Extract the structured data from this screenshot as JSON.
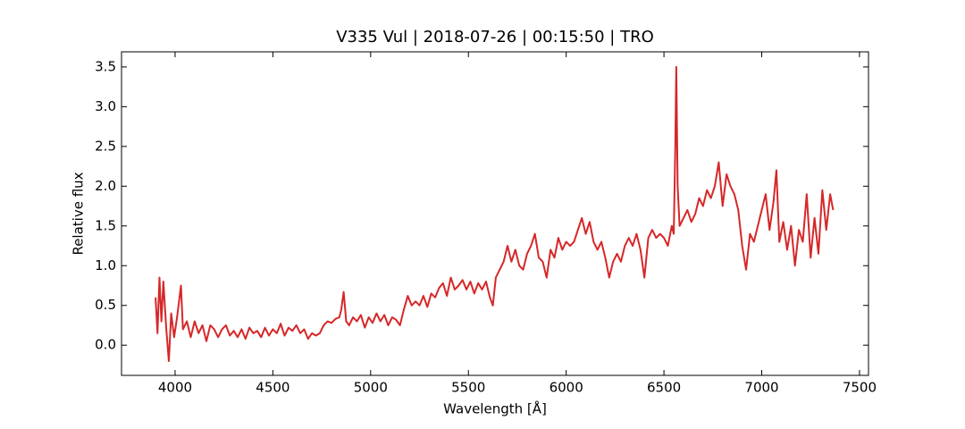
{
  "chart_data": {
    "type": "line",
    "title": "V335 Vul | 2018-07-26 | 00:15:50 | TRO",
    "x_label": "Wavelength [Å]",
    "y_label": "Relative flux",
    "xlim": [
      3726,
      7546
    ],
    "ylim": [
      -0.38,
      3.69
    ],
    "xticks": [
      4000,
      4500,
      5000,
      5500,
      6000,
      6500,
      7000,
      7500
    ],
    "yticks": [
      {
        "value": 0,
        "label": "0.0"
      },
      0.5,
      {
        "value": 1,
        "label": "1.0"
      },
      1.5,
      {
        "value": 2,
        "label": "2.0"
      },
      2.5,
      {
        "value": 3,
        "label": "3.0"
      },
      3.5
    ],
    "x": [
      3900,
      3910,
      3920,
      3930,
      3940,
      3955,
      3968,
      3980,
      3995,
      4010,
      4030,
      4040,
      4060,
      4080,
      4100,
      4120,
      4140,
      4160,
      4180,
      4200,
      4220,
      4240,
      4260,
      4280,
      4300,
      4320,
      4340,
      4360,
      4380,
      4400,
      4420,
      4440,
      4460,
      4480,
      4500,
      4520,
      4540,
      4560,
      4580,
      4600,
      4620,
      4640,
      4660,
      4680,
      4700,
      4720,
      4740,
      4760,
      4780,
      4800,
      4820,
      4840,
      4850,
      4862,
      4875,
      4890,
      4910,
      4930,
      4950,
      4970,
      4990,
      5010,
      5030,
      5050,
      5070,
      5090,
      5110,
      5130,
      5150,
      5170,
      5190,
      5210,
      5230,
      5250,
      5270,
      5290,
      5310,
      5330,
      5350,
      5370,
      5390,
      5410,
      5430,
      5450,
      5470,
      5490,
      5510,
      5530,
      5550,
      5570,
      5590,
      5610,
      5625,
      5640,
      5660,
      5680,
      5700,
      5720,
      5740,
      5760,
      5780,
      5800,
      5820,
      5840,
      5860,
      5880,
      5900,
      5920,
      5940,
      5960,
      5980,
      6000,
      6020,
      6040,
      6060,
      6080,
      6100,
      6120,
      6140,
      6160,
      6180,
      6200,
      6220,
      6240,
      6260,
      6280,
      6300,
      6320,
      6340,
      6360,
      6380,
      6400,
      6420,
      6440,
      6460,
      6480,
      6500,
      6520,
      6540,
      6550,
      6558,
      6563,
      6570,
      6580,
      6600,
      6620,
      6640,
      6660,
      6680,
      6700,
      6720,
      6740,
      6760,
      6780,
      6800,
      6820,
      6840,
      6860,
      6880,
      6900,
      6920,
      6940,
      6960,
      6980,
      7000,
      7020,
      7040,
      7060,
      7075,
      7090,
      7110,
      7130,
      7150,
      7170,
      7190,
      7210,
      7230,
      7250,
      7270,
      7290,
      7310,
      7330,
      7350,
      7365
    ],
    "series": [
      {
        "color": "#d62728",
        "values": [
          0.6,
          0.15,
          0.85,
          0.3,
          0.8,
          0.2,
          -0.2,
          0.4,
          0.1,
          0.35,
          0.75,
          0.2,
          0.3,
          0.1,
          0.3,
          0.15,
          0.25,
          0.05,
          0.25,
          0.2,
          0.1,
          0.2,
          0.25,
          0.12,
          0.18,
          0.1,
          0.2,
          0.08,
          0.22,
          0.15,
          0.18,
          0.1,
          0.22,
          0.12,
          0.2,
          0.15,
          0.27,
          0.12,
          0.22,
          0.18,
          0.25,
          0.15,
          0.2,
          0.08,
          0.15,
          0.12,
          0.15,
          0.25,
          0.3,
          0.28,
          0.33,
          0.35,
          0.45,
          0.67,
          0.3,
          0.25,
          0.35,
          0.3,
          0.38,
          0.22,
          0.35,
          0.28,
          0.4,
          0.3,
          0.38,
          0.25,
          0.35,
          0.32,
          0.25,
          0.45,
          0.62,
          0.5,
          0.55,
          0.5,
          0.62,
          0.48,
          0.65,
          0.6,
          0.72,
          0.78,
          0.62,
          0.85,
          0.7,
          0.75,
          0.82,
          0.7,
          0.8,
          0.65,
          0.78,
          0.7,
          0.8,
          0.6,
          0.5,
          0.85,
          0.95,
          1.05,
          1.25,
          1.05,
          1.2,
          1.0,
          0.95,
          1.15,
          1.25,
          1.4,
          1.1,
          1.05,
          0.85,
          1.2,
          1.1,
          1.35,
          1.2,
          1.3,
          1.25,
          1.3,
          1.45,
          1.6,
          1.4,
          1.55,
          1.3,
          1.2,
          1.3,
          1.1,
          0.85,
          1.05,
          1.15,
          1.05,
          1.25,
          1.35,
          1.25,
          1.4,
          1.2,
          0.85,
          1.35,
          1.45,
          1.35,
          1.4,
          1.35,
          1.25,
          1.5,
          1.4,
          2.5,
          3.5,
          2.0,
          1.5,
          1.6,
          1.7,
          1.55,
          1.65,
          1.85,
          1.75,
          1.95,
          1.85,
          2.0,
          2.3,
          1.75,
          2.15,
          2.0,
          1.9,
          1.7,
          1.25,
          0.95,
          1.4,
          1.3,
          1.5,
          1.7,
          1.9,
          1.45,
          1.8,
          2.2,
          1.3,
          1.55,
          1.2,
          1.5,
          1.0,
          1.45,
          1.3,
          1.9,
          1.1,
          1.6,
          1.15,
          1.95,
          1.45,
          1.9,
          1.7
        ]
      }
    ]
  }
}
